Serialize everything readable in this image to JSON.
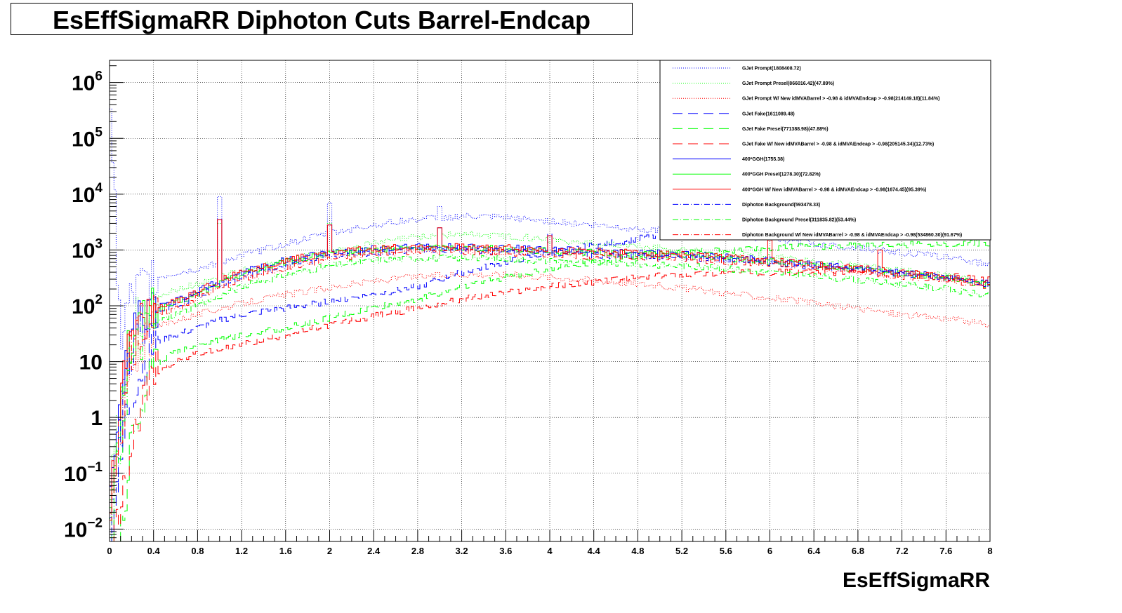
{
  "window": {
    "title": "EsEffSigmaRR Diphoton Cuts Barrel-Endcap"
  },
  "chart_data": {
    "type": "line",
    "subtype": "step-histogram",
    "title": "EsEffSigmaRR Diphoton Cuts Barrel-Endcap",
    "xlabel": "EsEffSigmaRR",
    "ylabel": "",
    "xlim": [
      0,
      8
    ],
    "ylim": [
      0.006,
      2500000
    ],
    "yscale": "log",
    "grid": true,
    "legend_position": "top-right",
    "x_ticks": [
      "0",
      "0.4",
      "0.8",
      "1.2",
      "1.6",
      "2",
      "2.4",
      "2.8",
      "3.2",
      "3.6",
      "4",
      "4.4",
      "4.8",
      "5.2",
      "5.6",
      "6",
      "6.4",
      "6.8",
      "7.2",
      "7.6",
      "8"
    ],
    "y_ticks": [
      {
        "value": 0.01,
        "base": "10",
        "exp": "−2"
      },
      {
        "value": 0.1,
        "base": "10",
        "exp": "−1"
      },
      {
        "value": 1,
        "base": "1",
        "exp": ""
      },
      {
        "value": 10,
        "base": "10",
        "exp": ""
      },
      {
        "value": 100,
        "base": "10",
        "exp": "2"
      },
      {
        "value": 1000,
        "base": "10",
        "exp": "3"
      },
      {
        "value": 10000,
        "base": "10",
        "exp": "4"
      },
      {
        "value": 100000,
        "base": "10",
        "exp": "5"
      },
      {
        "value": 1000000,
        "base": "10",
        "exp": "6"
      }
    ],
    "x": [
      0.0,
      0.1,
      0.15,
      0.2,
      0.3,
      0.4,
      0.6,
      0.8,
      1.0,
      1.2,
      1.6,
      2.0,
      2.4,
      2.8,
      3.2,
      3.6,
      4.0,
      4.4,
      4.8,
      5.2,
      5.6,
      6.0,
      6.4,
      6.8,
      7.2,
      7.6,
      8.0
    ],
    "series": [
      {
        "name": "GJet Prompt(1808408.72)",
        "color": "#0000ff",
        "dash": "1,2",
        "values": [
          1200000,
          20,
          60,
          120,
          200,
          300,
          380,
          450,
          600,
          800,
          1300,
          2000,
          2800,
          3600,
          4000,
          3800,
          3300,
          2800,
          2400,
          2100,
          1800,
          1600,
          1300,
          1100,
          900,
          750,
          550
        ],
        "spikes": [
          [
            1.0,
            9000
          ],
          [
            2.0,
            7000
          ],
          [
            3.0,
            6000
          ]
        ]
      },
      {
        "name": "GJet Prompt Presel(866016.42)(47.89%)",
        "color": "#00ff00",
        "dash": "1,2",
        "values": [
          0.02,
          2,
          10,
          30,
          80,
          130,
          190,
          250,
          330,
          420,
          650,
          900,
          1300,
          1700,
          1900,
          1800,
          1550,
          1300,
          1150,
          1000,
          850,
          750,
          620,
          520,
          430,
          360,
          260
        ],
        "spikes": [
          [
            1.0,
            3000
          ],
          [
            2.0,
            3000
          ],
          [
            3.0,
            2500
          ]
        ]
      },
      {
        "name": "GJet Prompt W/ New idMVABarrel > -0.98 & idMVAEndcap > -0.98(214149.18)(11.84%)",
        "color": "#ff0000",
        "dash": "1,2",
        "values": [
          0.02,
          0.5,
          3,
          10,
          25,
          40,
          55,
          70,
          90,
          110,
          160,
          210,
          280,
          330,
          370,
          360,
          330,
          290,
          250,
          210,
          170,
          140,
          110,
          90,
          70,
          60,
          45
        ]
      },
      {
        "name": "GJet Fake(1611089.48)",
        "color": "#0000ff",
        "dash": "14,8",
        "values": [
          0.01,
          0.1,
          1,
          3,
          8,
          20,
          30,
          40,
          55,
          70,
          90,
          120,
          160,
          220,
          400,
          600,
          900,
          1200,
          1600,
          1900,
          2100,
          2300,
          2500,
          2600,
          2700,
          2800,
          2900
        ],
        "spikes": [
          [
            4.0,
            2000
          ],
          [
            5.0,
            1800
          ],
          [
            6.0,
            2000
          ]
        ]
      },
      {
        "name": "GJet Fake Presel(771388.98)(47.88%)",
        "color": "#00ff00",
        "dash": "14,8",
        "values": [
          0.005,
          0.01,
          0.05,
          0.5,
          2,
          8,
          15,
          20,
          25,
          30,
          40,
          60,
          90,
          130,
          220,
          330,
          460,
          600,
          750,
          880,
          980,
          1080,
          1150,
          1200,
          1250,
          1300,
          1350
        ]
      },
      {
        "name": "GJet Fake W/ New idMVABarrel > -0.98 & idMVAEndcap > -0.98(205145.34)(12.73%)",
        "color": "#ff0000",
        "dash": "14,8",
        "values": [
          0.005,
          0.01,
          0.1,
          0.5,
          2,
          6,
          10,
          14,
          16,
          20,
          30,
          45,
          65,
          90,
          130,
          170,
          220,
          270,
          320,
          360,
          390,
          400,
          400,
          390,
          370,
          340,
          300
        ]
      },
      {
        "name": "400*GGH(1755.38)",
        "color": "#0000ff",
        "dash": "",
        "values": [
          0.02,
          1,
          10,
          30,
          60,
          90,
          120,
          180,
          280,
          400,
          650,
          900,
          1050,
          1150,
          1150,
          1100,
          1000,
          950,
          900,
          850,
          750,
          650,
          550,
          480,
          400,
          330,
          250
        ],
        "spikes": [
          [
            1.0,
            3500
          ],
          [
            2.0,
            2800
          ],
          [
            3.0,
            2500
          ],
          [
            4.0,
            1800
          ]
        ]
      },
      {
        "name": "400*GGH Presel(1278.30)(72.82%)",
        "color": "#00ff00",
        "dash": "",
        "values": [
          0.02,
          1,
          10,
          25,
          50,
          80,
          110,
          160,
          250,
          370,
          600,
          850,
          1000,
          1100,
          1100,
          1050,
          950,
          900,
          850,
          800,
          700,
          620,
          520,
          450,
          380,
          310,
          230
        ]
      },
      {
        "name": "400*GGH W/ New idMVABarrel > -0.98 & idMVAEndcap > -0.98(1674.45)(95.39%)",
        "color": "#ff0000",
        "dash": "",
        "values": [
          0.02,
          1,
          10,
          30,
          60,
          90,
          120,
          180,
          280,
          400,
          650,
          900,
          1050,
          1150,
          1150,
          1100,
          1000,
          950,
          900,
          850,
          750,
          650,
          550,
          480,
          400,
          330,
          250
        ],
        "spikes": [
          [
            1.0,
            3500
          ],
          [
            2.0,
            2800
          ],
          [
            3.0,
            2500
          ],
          [
            4.0,
            1800
          ],
          [
            6.0,
            1500
          ],
          [
            7.0,
            1000
          ]
        ]
      },
      {
        "name": "Diphoton Background(593478.33)",
        "color": "#0000ff",
        "dash": "8,3,1,3",
        "values": [
          0.01,
          0.5,
          5,
          20,
          45,
          70,
          100,
          150,
          230,
          320,
          520,
          750,
          900,
          1000,
          1000,
          950,
          880,
          820,
          780,
          740,
          660,
          580,
          500,
          430,
          370,
          310,
          240
        ]
      },
      {
        "name": "Diphoton Background Presel(311835.82)(53.44%)",
        "color": "#00ff00",
        "dash": "8,3,1,3",
        "values": [
          0.01,
          0.3,
          3,
          12,
          30,
          50,
          70,
          100,
          150,
          220,
          360,
          520,
          650,
          720,
          720,
          690,
          640,
          600,
          560,
          520,
          460,
          400,
          340,
          290,
          240,
          200,
          150
        ]
      },
      {
        "name": "Diphoton Background W/ New idMVABarrel > -0.98 & idMVAEndcap > -0.98(534860.30)(91.67%)",
        "color": "#ff0000",
        "dash": "8,3,1,3",
        "values": [
          0.01,
          0.4,
          4,
          18,
          40,
          65,
          90,
          140,
          210,
          300,
          480,
          700,
          850,
          950,
          950,
          900,
          830,
          780,
          740,
          700,
          620,
          550,
          470,
          400,
          340,
          290,
          220
        ]
      }
    ]
  }
}
